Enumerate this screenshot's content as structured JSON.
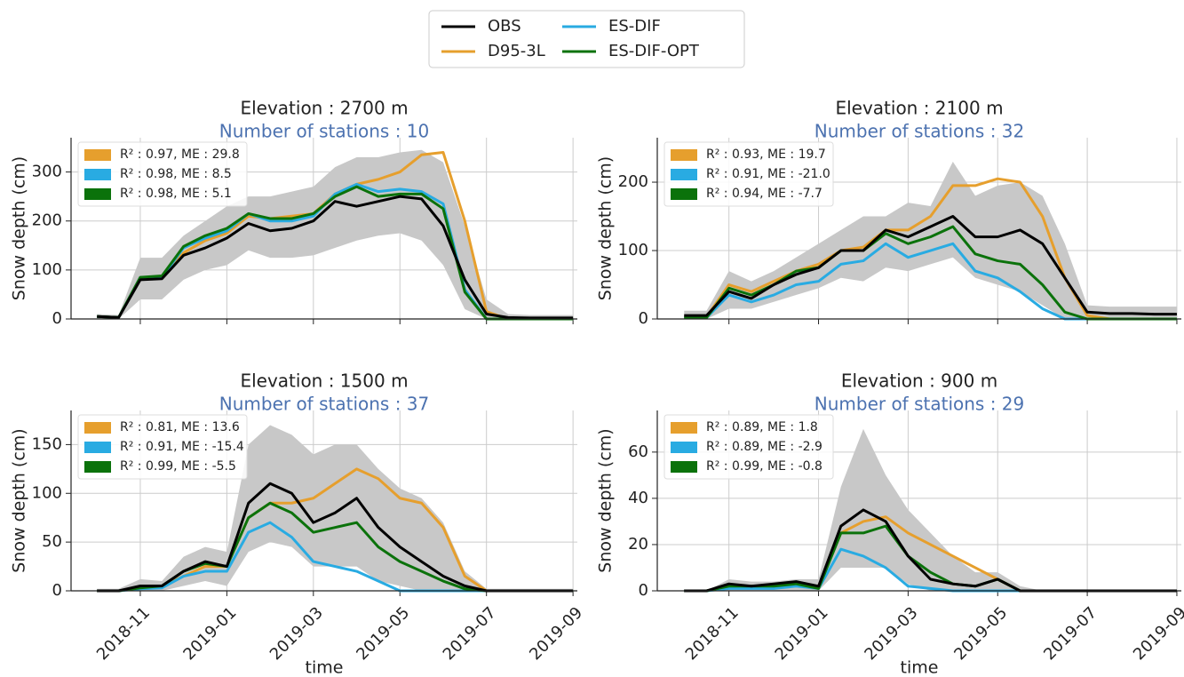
{
  "chart_data": [
    {
      "type": "line",
      "title": "Elevation : 2700 m",
      "subtitle": "Number of stations : 10",
      "y_label": "Snow depth (cm)",
      "x": [
        0,
        0.5,
        1,
        1.5,
        2,
        2.5,
        3,
        3.5,
        4,
        4.5,
        5,
        5.5,
        6,
        6.5,
        7,
        7.5,
        8,
        8.5,
        9,
        9.5,
        10,
        10.5,
        11
      ],
      "xlim": [
        -0.6,
        11.1
      ],
      "xticks": [
        1,
        3,
        5,
        7,
        9,
        11
      ],
      "ylim": [
        0,
        370
      ],
      "yticks": [
        0,
        100,
        200,
        300
      ],
      "grid": true,
      "band": {
        "color": "#c8c8c8",
        "lower": [
          0,
          0,
          40,
          40,
          80,
          100,
          110,
          140,
          125,
          125,
          130,
          145,
          160,
          170,
          175,
          160,
          110,
          20,
          0,
          0,
          0,
          0,
          0
        ],
        "upper": [
          10,
          8,
          125,
          125,
          170,
          200,
          230,
          250,
          250,
          260,
          270,
          310,
          330,
          330,
          340,
          345,
          320,
          190,
          40,
          10,
          8,
          8,
          8
        ]
      },
      "stats": [
        "R² : 0.97, ME : 29.8",
        "R² : 0.98, ME : 8.5",
        "R² : 0.98, ME : 5.1"
      ],
      "series": [
        {
          "name": "OBS",
          "color": "#000000",
          "values": [
            5,
            3,
            80,
            82,
            130,
            145,
            165,
            195,
            180,
            185,
            200,
            240,
            230,
            240,
            250,
            245,
            190,
            80,
            10,
            3,
            2,
            2,
            2
          ]
        },
        {
          "name": "D95-3L",
          "color": "#e69f2d",
          "values": [
            5,
            3,
            85,
            85,
            135,
            160,
            175,
            210,
            205,
            210,
            215,
            255,
            275,
            285,
            300,
            335,
            340,
            200,
            15,
            0,
            0,
            0,
            0
          ]
        },
        {
          "name": "ES-DIF",
          "color": "#29abe2",
          "values": [
            5,
            3,
            85,
            85,
            145,
            165,
            180,
            215,
            200,
            200,
            210,
            255,
            275,
            260,
            265,
            260,
            235,
            60,
            0,
            0,
            0,
            0,
            0
          ]
        },
        {
          "name": "ES-DIF-OPT",
          "color": "#0b720b",
          "values": [
            5,
            3,
            85,
            88,
            148,
            170,
            185,
            215,
            205,
            205,
            215,
            250,
            270,
            250,
            255,
            255,
            225,
            55,
            0,
            0,
            0,
            0,
            0
          ]
        }
      ]
    },
    {
      "type": "line",
      "title": "Elevation : 2100 m",
      "subtitle": "Number of stations : 32",
      "y_label": "Snow depth (cm)",
      "x": [
        0,
        0.5,
        1,
        1.5,
        2,
        2.5,
        3,
        3.5,
        4,
        4.5,
        5,
        5.5,
        6,
        6.5,
        7,
        7.5,
        8,
        8.5,
        9,
        9.5,
        10,
        10.5,
        11
      ],
      "xlim": [
        -0.6,
        11.1
      ],
      "xticks": [
        1,
        3,
        5,
        7,
        9,
        11
      ],
      "ylim": [
        0,
        265
      ],
      "yticks": [
        0,
        100,
        200
      ],
      "grid": true,
      "band": {
        "color": "#c8c8c8",
        "lower": [
          0,
          0,
          15,
          15,
          25,
          35,
          45,
          60,
          55,
          75,
          70,
          80,
          90,
          60,
          50,
          40,
          20,
          0,
          0,
          0,
          0,
          0,
          0
        ],
        "upper": [
          12,
          12,
          70,
          55,
          70,
          90,
          110,
          130,
          150,
          150,
          170,
          165,
          230,
          180,
          195,
          200,
          180,
          110,
          20,
          18,
          18,
          18,
          18
        ]
      },
      "stats": [
        "R² : 0.93, ME : 19.7",
        "R² : 0.91, ME : -21.0",
        "R² : 0.94, ME : -7.7"
      ],
      "series": [
        {
          "color": "#000000",
          "values": [
            5,
            5,
            40,
            30,
            50,
            65,
            75,
            100,
            100,
            130,
            120,
            135,
            150,
            120,
            120,
            130,
            110,
            60,
            10,
            8,
            8,
            7,
            7
          ]
        },
        {
          "color": "#e69f2d",
          "values": [
            3,
            3,
            50,
            40,
            55,
            70,
            80,
            100,
            105,
            130,
            130,
            150,
            195,
            195,
            205,
            200,
            150,
            60,
            5,
            0,
            0,
            0,
            0
          ]
        },
        {
          "color": "#29abe2",
          "values": [
            2,
            2,
            35,
            25,
            35,
            50,
            55,
            80,
            85,
            110,
            90,
            100,
            110,
            70,
            60,
            40,
            15,
            0,
            0,
            0,
            0,
            0,
            0
          ]
        },
        {
          "color": "#0b720b",
          "values": [
            2,
            2,
            45,
            35,
            50,
            70,
            75,
            100,
            100,
            125,
            110,
            120,
            135,
            95,
            85,
            80,
            50,
            10,
            0,
            0,
            0,
            0,
            0
          ]
        }
      ]
    },
    {
      "type": "line",
      "title": "Elevation : 1500 m",
      "subtitle": "Number of stations : 37",
      "y_label": "Snow depth (cm)",
      "x_label": "time",
      "x": [
        0,
        0.5,
        1,
        1.5,
        2,
        2.5,
        3,
        3.5,
        4,
        4.5,
        5,
        5.5,
        6,
        6.5,
        7,
        7.5,
        8,
        8.5,
        9,
        9.5,
        10,
        10.5,
        11
      ],
      "xlim": [
        -0.6,
        11.1
      ],
      "xticks": [
        {
          "value": 1,
          "label": "2018-11"
        },
        {
          "value": 3,
          "label": "2019-01"
        },
        {
          "value": 5,
          "label": "2019-03"
        },
        {
          "value": 7,
          "label": "2019-05"
        },
        {
          "value": 9,
          "label": "2019-07"
        },
        {
          "value": 11,
          "label": "2019-09"
        }
      ],
      "ylim": [
        0,
        185
      ],
      "yticks": [
        0,
        50,
        100,
        150
      ],
      "grid": true,
      "band": {
        "color": "#c8c8c8",
        "lower": [
          0,
          0,
          0,
          0,
          5,
          10,
          5,
          40,
          50,
          45,
          25,
          25,
          25,
          10,
          5,
          0,
          0,
          0,
          0,
          0,
          0,
          0,
          0
        ],
        "upper": [
          2,
          2,
          12,
          10,
          35,
          45,
          40,
          150,
          170,
          160,
          140,
          150,
          150,
          125,
          105,
          95,
          70,
          20,
          2,
          2,
          2,
          2,
          2
        ]
      },
      "stats": [
        "R² : 0.81, ME : 13.6",
        "R² : 0.91, ME : -15.4",
        "R² : 0.99, ME : -5.5"
      ],
      "series": [
        {
          "color": "#000000",
          "values": [
            0,
            0,
            5,
            5,
            20,
            30,
            25,
            90,
            110,
            100,
            70,
            80,
            95,
            65,
            45,
            30,
            15,
            5,
            0,
            0,
            0,
            0,
            0
          ]
        },
        {
          "color": "#e69f2d",
          "values": [
            0,
            0,
            3,
            5,
            15,
            25,
            25,
            75,
            90,
            90,
            95,
            110,
            125,
            115,
            95,
            90,
            65,
            15,
            0,
            0,
            0,
            0,
            0
          ]
        },
        {
          "color": "#29abe2",
          "values": [
            0,
            0,
            2,
            3,
            15,
            20,
            20,
            60,
            70,
            55,
            30,
            25,
            20,
            10,
            0,
            0,
            0,
            0,
            0,
            0,
            0,
            0,
            0
          ]
        },
        {
          "color": "#0b720b",
          "values": [
            0,
            0,
            3,
            5,
            20,
            28,
            25,
            75,
            90,
            80,
            60,
            65,
            70,
            45,
            30,
            20,
            10,
            2,
            0,
            0,
            0,
            0,
            0
          ]
        }
      ]
    },
    {
      "type": "line",
      "title": "Elevation : 900 m",
      "subtitle": "Number of stations : 29",
      "y_label": "Snow depth (cm)",
      "x_label": "time",
      "x": [
        0,
        0.5,
        1,
        1.5,
        2,
        2.5,
        3,
        3.5,
        4,
        4.5,
        5,
        5.5,
        6,
        6.5,
        7,
        7.5,
        8,
        8.5,
        9,
        9.5,
        10,
        10.5,
        11
      ],
      "xlim": [
        -0.6,
        11.1
      ],
      "xticks": [
        {
          "value": 1,
          "label": "2018-11"
        },
        {
          "value": 3,
          "label": "2019-01"
        },
        {
          "value": 5,
          "label": "2019-03"
        },
        {
          "value": 7,
          "label": "2019-05"
        },
        {
          "value": 9,
          "label": "2019-07"
        },
        {
          "value": 11,
          "label": "2019-09"
        }
      ],
      "ylim": [
        0,
        78
      ],
      "yticks": [
        0,
        20,
        40,
        60
      ],
      "grid": true,
      "band": {
        "color": "#c8c8c8",
        "lower": [
          0,
          0,
          0,
          0,
          0,
          0,
          0,
          10,
          10,
          10,
          3,
          0,
          0,
          0,
          0,
          0,
          0,
          0,
          0,
          0,
          0,
          0,
          0
        ],
        "upper": [
          0,
          0,
          5,
          4,
          4,
          5,
          5,
          45,
          70,
          50,
          35,
          25,
          15,
          8,
          8,
          2,
          0,
          0,
          0,
          0,
          0,
          0,
          0
        ]
      },
      "stats": [
        "R² : 0.89, ME : 1.8",
        "R² : 0.89, ME : -2.9",
        "R² : 0.99, ME : -0.8"
      ],
      "series": [
        {
          "color": "#000000",
          "values": [
            0,
            0,
            3,
            2,
            3,
            4,
            2,
            28,
            35,
            30,
            15,
            5,
            3,
            2,
            5,
            0,
            0,
            0,
            0,
            0,
            0,
            0,
            0
          ]
        },
        {
          "color": "#e69f2d",
          "values": [
            0,
            0,
            2,
            2,
            2,
            3,
            2,
            25,
            30,
            32,
            25,
            20,
            15,
            10,
            5,
            0,
            0,
            0,
            0,
            0,
            0,
            0,
            0
          ]
        },
        {
          "color": "#29abe2",
          "values": [
            0,
            0,
            1,
            1,
            1,
            2,
            1,
            18,
            15,
            10,
            2,
            1,
            0,
            0,
            0,
            0,
            0,
            0,
            0,
            0,
            0,
            0,
            0
          ]
        },
        {
          "color": "#0b720b",
          "values": [
            0,
            0,
            2,
            2,
            2,
            3,
            1,
            25,
            25,
            28,
            15,
            8,
            3,
            2,
            5,
            0,
            0,
            0,
            0,
            0,
            0,
            0,
            0
          ]
        }
      ]
    }
  ]
}
